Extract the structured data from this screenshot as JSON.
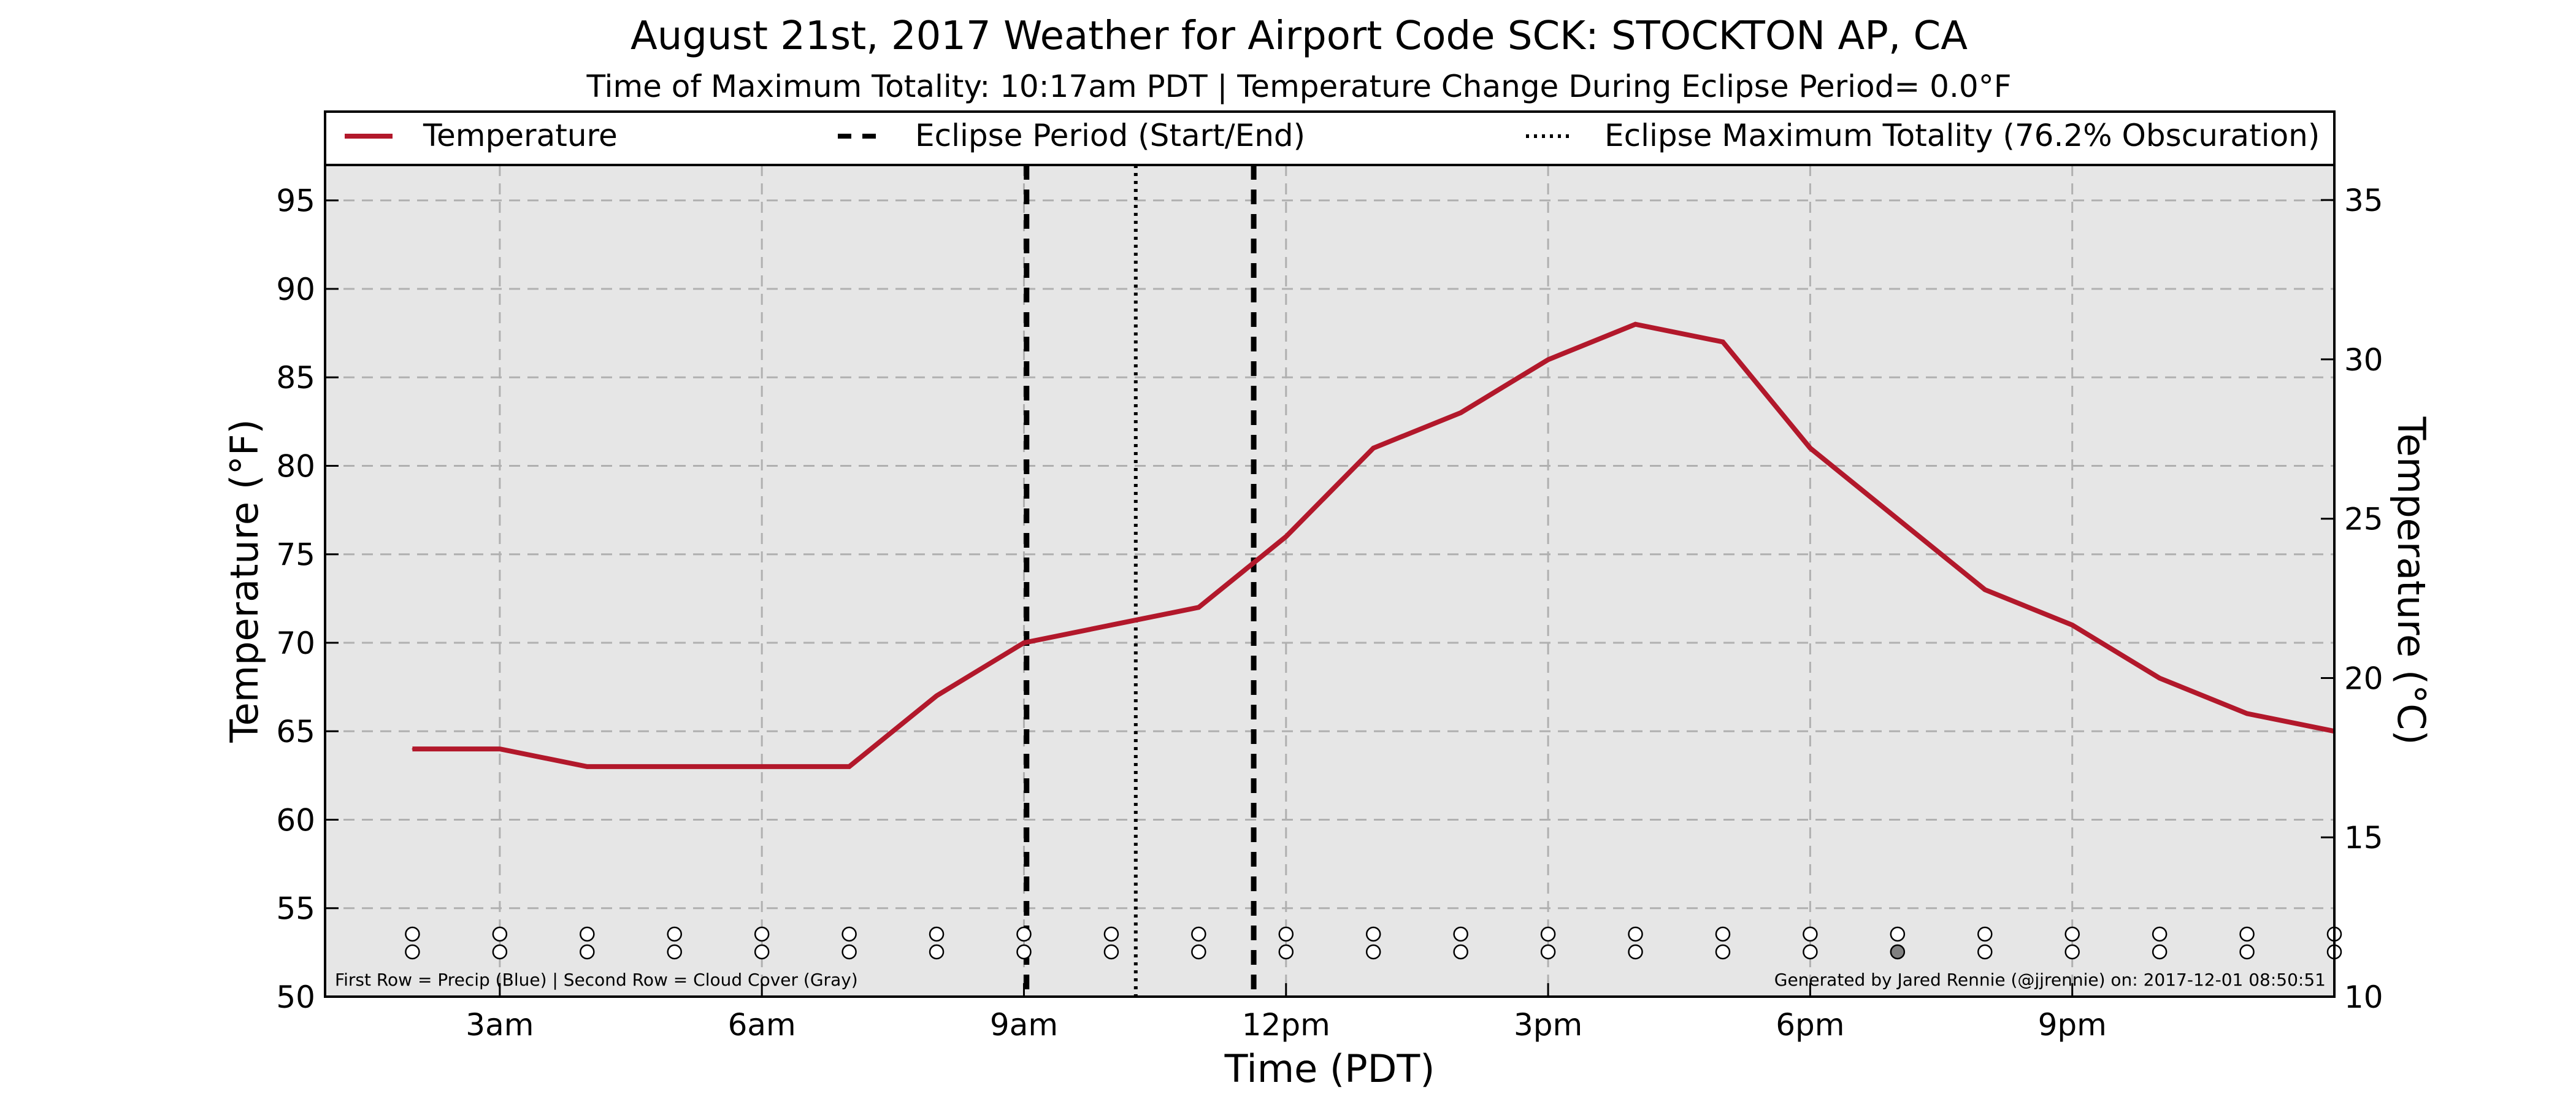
{
  "chart_data": {
    "type": "line",
    "title": "August 21st, 2017 Weather for Airport Code SCK: STOCKTON AP, CA",
    "subtitle": "Time of Maximum Totality: 10:17am PDT | Temperature Change During Eclipse Period= 0.0°F",
    "xlabel": "Time (PDT)",
    "ylabel": "Temperature (°F)",
    "ylabel_right": "Temperature (°C)",
    "ylim": [
      50,
      97
    ],
    "ylim_right": [
      10,
      36.1
    ],
    "xlim_hours": [
      1.0,
      24.0
    ],
    "x_ticks": [
      {
        "hour": 3,
        "label": "3am"
      },
      {
        "hour": 6,
        "label": "6am"
      },
      {
        "hour": 9,
        "label": "9am"
      },
      {
        "hour": 12,
        "label": "12pm"
      },
      {
        "hour": 15,
        "label": "3pm"
      },
      {
        "hour": 18,
        "label": "6pm"
      },
      {
        "hour": 21,
        "label": "9pm"
      }
    ],
    "y_ticks_left": [
      50,
      55,
      60,
      65,
      70,
      75,
      80,
      85,
      90,
      95
    ],
    "y_ticks_right": [
      10,
      15,
      20,
      25,
      30,
      35
    ],
    "grid": true,
    "series": [
      {
        "name": "Temperature",
        "color": "#b2182b",
        "x_hours": [
          2,
          3,
          4,
          5,
          6,
          7,
          8,
          9,
          10,
          11,
          12,
          13,
          14,
          15,
          16,
          17,
          18,
          19,
          20,
          21,
          22,
          23,
          24
        ],
        "values": [
          64,
          64,
          63,
          63,
          63,
          63,
          67,
          70,
          71,
          72,
          76,
          81,
          83,
          86,
          88,
          87,
          81,
          77,
          73,
          71,
          68,
          66,
          65
        ]
      }
    ],
    "eclipse_period": {
      "start_hour": 9.03,
      "end_hour": 11.63,
      "label": "Eclipse Period (Start/End)"
    },
    "eclipse_max": {
      "hour": 10.28,
      "label": "Eclipse Maximum Totality (76.2% Obscuration)"
    },
    "legend": {
      "placement": "top",
      "items": [
        "Temperature",
        "Eclipse Period (Start/End)",
        "Eclipse Maximum Totality (76.2% Obscuration)"
      ]
    },
    "markers": {
      "x_hours": [
        2,
        3,
        4,
        5,
        6,
        7,
        8,
        9,
        10,
        11,
        12,
        13,
        14,
        15,
        16,
        17,
        18,
        19,
        20,
        21,
        22,
        23,
        24
      ],
      "precip_row_filled": [
        false,
        false,
        false,
        false,
        false,
        false,
        false,
        false,
        false,
        false,
        false,
        false,
        false,
        false,
        false,
        false,
        false,
        false,
        false,
        false,
        false,
        false,
        false
      ],
      "cloud_row_filled": [
        false,
        false,
        false,
        false,
        false,
        false,
        false,
        false,
        false,
        false,
        false,
        false,
        false,
        false,
        false,
        false,
        false,
        true,
        false,
        false,
        false,
        false,
        false
      ],
      "precip_color": "#1f77b4",
      "cloud_color": "#808080"
    },
    "footnote_left": "First Row = Precip (Blue) | Second Row = Cloud Cover (Gray)",
    "footnote_right": "Generated by Jared Rennie (@jjrennie) on: 2017-12-01 08:50:51"
  }
}
